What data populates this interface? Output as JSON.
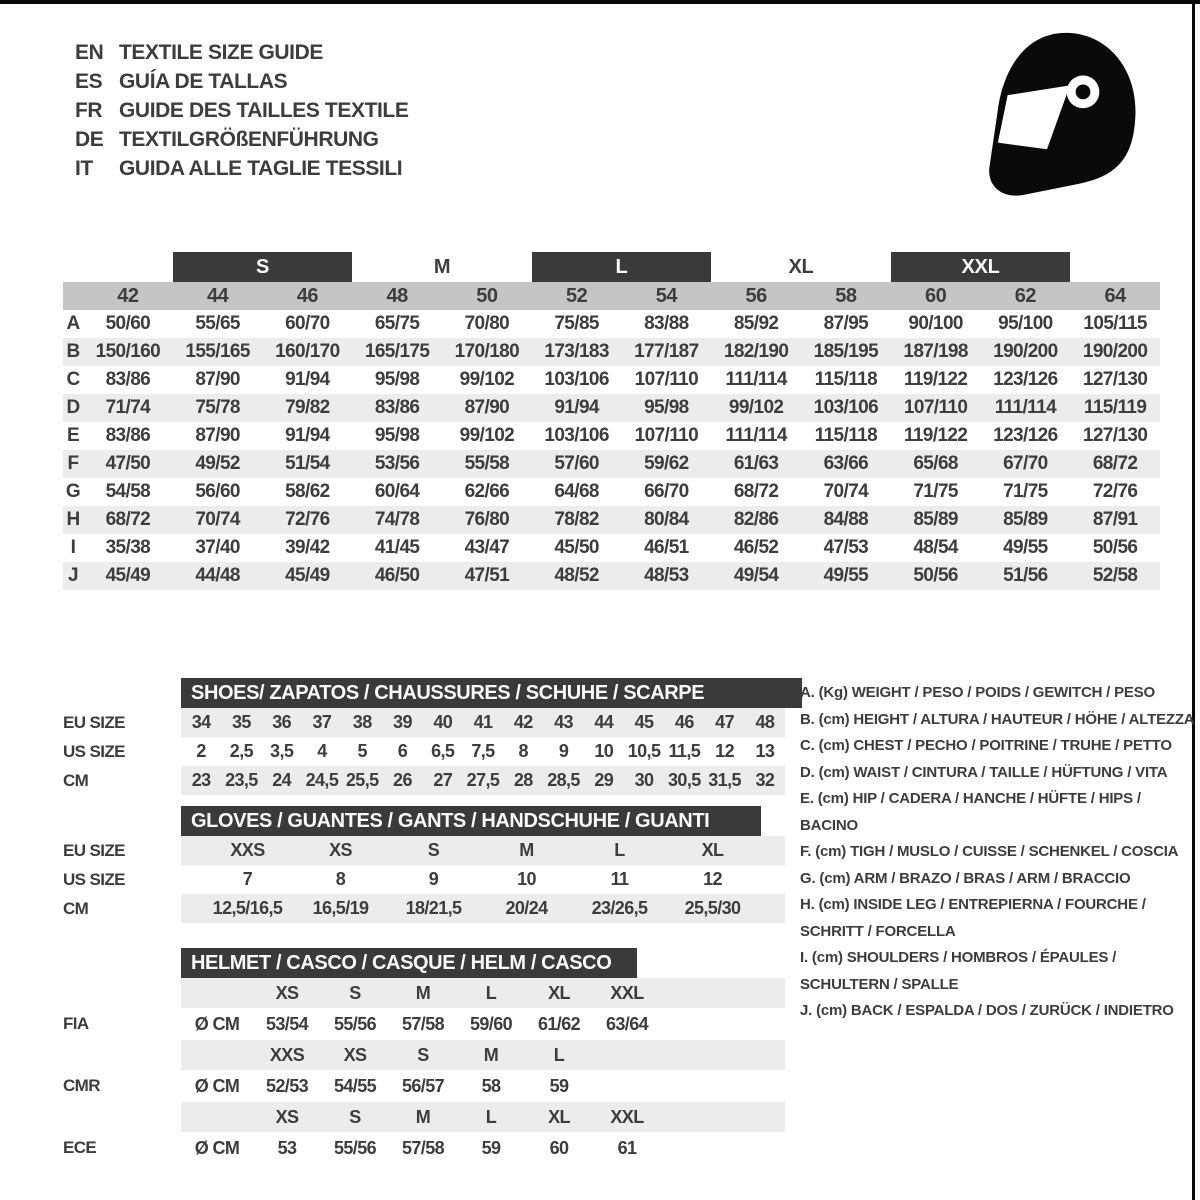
{
  "colors": {
    "dark_bar": "#3a3a3a",
    "band_gray": "#c5c5c5",
    "stripe_gray": "#ececec",
    "text": "#3d3d3d",
    "icon_black": "#0a0a0a"
  },
  "header": {
    "languages": [
      {
        "code": "EN",
        "title": "TEXTILE SIZE GUIDE"
      },
      {
        "code": "ES",
        "title": "GUÍA DE TALLAS"
      },
      {
        "code": "FR",
        "title": "GUIDE DES TAILLES TEXTILE"
      },
      {
        "code": "DE",
        "title": "TEXTILGRÖßENFÜHRUNG"
      },
      {
        "code": "IT",
        "title": "GUIDA ALLE TAGLIE TESSILI"
      }
    ],
    "icon": "racing-helmet-icon"
  },
  "main_table": {
    "size_groups": [
      {
        "label": "S",
        "bar": true
      },
      {
        "label": "M",
        "bar": false
      },
      {
        "label": "L",
        "bar": true
      },
      {
        "label": "XL",
        "bar": false
      },
      {
        "label": "XXL",
        "bar": true
      }
    ],
    "columns": [
      "42",
      "44",
      "46",
      "48",
      "50",
      "52",
      "54",
      "56",
      "58",
      "60",
      "62",
      "64"
    ],
    "rows": [
      {
        "key": "A",
        "values": [
          "50/60",
          "55/65",
          "60/70",
          "65/75",
          "70/80",
          "75/85",
          "83/88",
          "85/92",
          "87/95",
          "90/100",
          "95/100",
          "105/115"
        ]
      },
      {
        "key": "B",
        "values": [
          "150/160",
          "155/165",
          "160/170",
          "165/175",
          "170/180",
          "173/183",
          "177/187",
          "182/190",
          "185/195",
          "187/198",
          "190/200",
          "190/200"
        ]
      },
      {
        "key": "C",
        "values": [
          "83/86",
          "87/90",
          "91/94",
          "95/98",
          "99/102",
          "103/106",
          "107/110",
          "111/114",
          "115/118",
          "119/122",
          "123/126",
          "127/130"
        ]
      },
      {
        "key": "D",
        "values": [
          "71/74",
          "75/78",
          "79/82",
          "83/86",
          "87/90",
          "91/94",
          "95/98",
          "99/102",
          "103/106",
          "107/110",
          "111/114",
          "115/119"
        ]
      },
      {
        "key": "E",
        "values": [
          "83/86",
          "87/90",
          "91/94",
          "95/98",
          "99/102",
          "103/106",
          "107/110",
          "111/114",
          "115/118",
          "119/122",
          "123/126",
          "127/130"
        ]
      },
      {
        "key": "F",
        "values": [
          "47/50",
          "49/52",
          "51/54",
          "53/56",
          "55/58",
          "57/60",
          "59/62",
          "61/63",
          "63/66",
          "65/68",
          "67/70",
          "68/72"
        ]
      },
      {
        "key": "G",
        "values": [
          "54/58",
          "56/60",
          "58/62",
          "60/64",
          "62/66",
          "64/68",
          "66/70",
          "68/72",
          "70/74",
          "71/75",
          "71/75",
          "72/76"
        ]
      },
      {
        "key": "H",
        "values": [
          "68/72",
          "70/74",
          "72/76",
          "74/78",
          "76/80",
          "78/82",
          "80/84",
          "82/86",
          "84/88",
          "85/89",
          "85/89",
          "87/91"
        ]
      },
      {
        "key": "I",
        "values": [
          "35/38",
          "37/40",
          "39/42",
          "41/45",
          "43/47",
          "45/50",
          "46/51",
          "46/52",
          "47/53",
          "48/54",
          "49/55",
          "50/56"
        ]
      },
      {
        "key": "J",
        "values": [
          "45/49",
          "44/48",
          "45/49",
          "46/50",
          "47/51",
          "48/52",
          "48/53",
          "49/54",
          "49/55",
          "50/56",
          "51/56",
          "52/58"
        ]
      }
    ]
  },
  "shoes_table": {
    "title": "SHOES/ ZAPATOS / CHAUSSURES / SCHUHE / SCARPE",
    "rows": [
      {
        "label": "EU SIZE",
        "values": [
          "34",
          "35",
          "36",
          "37",
          "38",
          "39",
          "40",
          "41",
          "42",
          "43",
          "44",
          "45",
          "46",
          "47",
          "48"
        ]
      },
      {
        "label": "US SIZE",
        "values": [
          "2",
          "2,5",
          "3,5",
          "4",
          "5",
          "6",
          "6,5",
          "7,5",
          "8",
          "9",
          "10",
          "10,5",
          "11,5",
          "12",
          "13"
        ]
      },
      {
        "label": "CM",
        "values": [
          "23",
          "23,5",
          "24",
          "24,5",
          "25,5",
          "26",
          "27",
          "27,5",
          "28",
          "28,5",
          "29",
          "30",
          "30,5",
          "31,5",
          "32"
        ]
      }
    ]
  },
  "gloves_table": {
    "title": "GLOVES / GUANTES / GANTS / HANDSCHUHE / GUANTI",
    "rows": [
      {
        "label": "EU SIZE",
        "values": [
          "XXS",
          "XS",
          "S",
          "M",
          "L",
          "XL"
        ]
      },
      {
        "label": "US SIZE",
        "values": [
          "7",
          "8",
          "9",
          "10",
          "11",
          "12"
        ]
      },
      {
        "label": "CM",
        "values": [
          "12,5/16,5",
          "16,5/19",
          "18/21,5",
          "20/24",
          "23/26,5",
          "25,5/30"
        ]
      }
    ]
  },
  "helmet_table": {
    "title": "HELMET / CASCO / CASQUE / HELM / CASCO",
    "diameter_label": "Ø CM",
    "sections": [
      {
        "label": "FIA",
        "sizes": [
          "XS",
          "S",
          "M",
          "L",
          "XL",
          "XXL"
        ],
        "values": [
          "53/54",
          "55/56",
          "57/58",
          "59/60",
          "61/62",
          "63/64"
        ]
      },
      {
        "label": "CMR",
        "sizes": [
          "XXS",
          "XS",
          "S",
          "M",
          "L"
        ],
        "values": [
          "52/53",
          "54/55",
          "56/57",
          "58",
          "59"
        ]
      },
      {
        "label": "ECE",
        "sizes": [
          "XS",
          "S",
          "M",
          "L",
          "XL",
          "XXL"
        ],
        "values": [
          "53",
          "55/56",
          "57/58",
          "59",
          "60",
          "61"
        ]
      }
    ]
  },
  "legend": {
    "items": [
      [
        "A. (Kg) WEIGHT / PESO / POIDS / GEWITCH / PESO"
      ],
      [
        "B. (cm) HEIGHT / ALTURA / HAUTEUR / HÖHE / ALTEZZA"
      ],
      [
        "C. (cm) CHEST / PECHO / POITRINE / TRUHE / PETTO"
      ],
      [
        "D. (cm) WAIST / CINTURA / TAILLE / HÜFTUNG / VITA"
      ],
      [
        "E. (cm) HIP / CADERA / HANCHE / HÜFTE / HIPS / BACINO"
      ],
      [
        "F. (cm) TIGH / MUSLO / CUISSE / SCHENKEL / COSCIA"
      ],
      [
        "G. (cm) ARM / BRAZO / BRAS / ARM / BRACCIO"
      ],
      [
        "H. (cm) INSIDE LEG / ENTREPIERNA / FOURCHE /",
        "SCHRITT / FORCELLA"
      ],
      [
        "I. (cm) SHOULDERS / HOMBROS / ÉPAULES /",
        "SCHULTERN / SPALLE"
      ],
      [
        "J. (cm) BACK / ESPALDA / DOS / ZURÜCK / INDIETRO"
      ]
    ]
  }
}
